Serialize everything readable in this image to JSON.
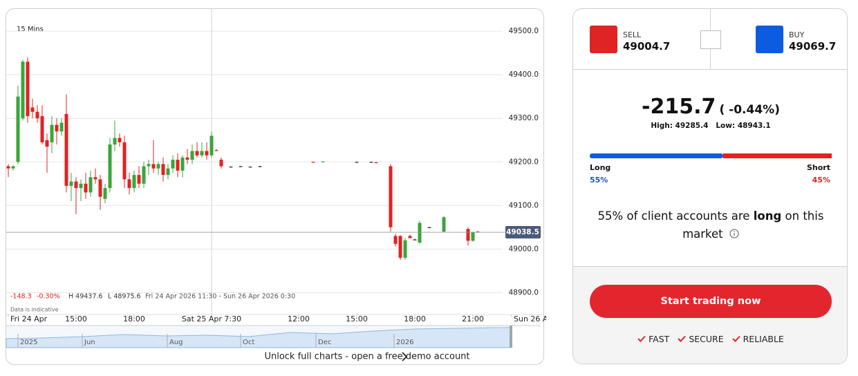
{
  "chart_data": {
    "type": "candlestick",
    "interval": "15 Mins",
    "x": [
      0,
      1,
      2,
      3,
      4,
      5,
      6,
      7,
      8,
      9,
      10,
      11,
      12,
      13,
      14,
      15,
      16,
      17,
      18,
      19,
      20,
      21,
      22,
      23,
      24,
      25,
      26,
      27,
      28,
      29,
      30,
      31,
      32,
      33,
      34,
      35,
      36,
      37,
      38,
      39,
      40,
      41,
      42,
      43,
      44,
      46,
      48,
      50,
      52,
      63,
      65,
      72,
      75,
      76,
      79,
      80,
      81,
      82,
      83,
      84,
      85,
      87,
      90,
      95,
      96,
      97
    ],
    "open": [
      49190,
      49185,
      49200,
      49300,
      49430,
      49325,
      49315,
      49305,
      49250,
      49245,
      49285,
      49270,
      49310,
      49145,
      49155,
      49140,
      49150,
      49130,
      49165,
      49160,
      49115,
      49140,
      49240,
      49255,
      49245,
      49160,
      49140,
      49170,
      49150,
      49190,
      49195,
      49185,
      49195,
      49170,
      49185,
      49205,
      49180,
      49210,
      49205,
      49225,
      49215,
      49225,
      49215,
      49227,
      49205,
      49189,
      49190,
      49189,
      49190,
      49200,
      49200,
      49200,
      49200,
      49199,
      49190,
      49030,
      49030,
      48980,
      49030,
      49022,
      49015,
      49050,
      49040,
      49046,
      49019,
      49040
    ],
    "high": [
      49195,
      49192,
      49375,
      49435,
      49440,
      49345,
      49330,
      49330,
      49265,
      49305,
      49300,
      49300,
      49355,
      49175,
      49165,
      49160,
      49175,
      49180,
      49185,
      49170,
      49150,
      49255,
      49295,
      49265,
      49260,
      49175,
      49180,
      49190,
      49200,
      49205,
      49250,
      49200,
      49210,
      49195,
      49215,
      49220,
      49215,
      49230,
      49240,
      49245,
      49245,
      49245,
      49270,
      49230,
      49210,
      49190,
      49191,
      49190,
      49191,
      49201,
      49201,
      49201,
      49201,
      49200,
      49195,
      49035,
      49032,
      49025,
      49033,
      49024,
      49065,
      49051,
      49075,
      49050,
      49040,
      49041
    ],
    "low": [
      49165,
      49180,
      49195,
      49295,
      49290,
      49300,
      49290,
      49240,
      49175,
      49220,
      49240,
      49260,
      49130,
      49110,
      49080,
      49110,
      49115,
      49120,
      49150,
      49090,
      49105,
      49130,
      49225,
      49235,
      49140,
      49125,
      49130,
      49140,
      49140,
      49170,
      49175,
      49170,
      49155,
      49160,
      49175,
      49165,
      49165,
      49195,
      49195,
      49210,
      49210,
      49205,
      49210,
      49225,
      49185,
      49188,
      49189,
      49188,
      49189,
      49199,
      49199,
      49199,
      49199,
      49197,
      49040,
      49005,
      48975,
      48975,
      49025,
      49020,
      49012,
      49049,
      49038,
      49008,
      49017,
      49039
    ],
    "close": [
      49185,
      49190,
      49350,
      49430,
      49305,
      49315,
      49300,
      49245,
      49235,
      49285,
      49270,
      49290,
      49145,
      49155,
      49140,
      49150,
      49130,
      49165,
      49160,
      49120,
      49140,
      49240,
      49255,
      49245,
      49160,
      49140,
      49170,
      49150,
      49190,
      49195,
      49185,
      49195,
      49170,
      49185,
      49205,
      49180,
      49210,
      49205,
      49225,
      49215,
      49225,
      49215,
      49260,
      49226,
      49190,
      49189,
      49190,
      49189,
      49190,
      49199,
      49201,
      49200,
      49200,
      49198,
      49050,
      49012,
      48980,
      49020,
      49025,
      49022,
      49060,
      49050,
      49073,
      49019,
      49038,
      49040
    ],
    "up_color": "#3aa53a",
    "down_color": "#e02323",
    "flat_color": "#333333",
    "last": 49038.5,
    "xlim": [
      -0.5,
      110
    ],
    "xticks": [
      {
        "value": 0,
        "label": "Fri 24 Apr"
      },
      {
        "value": 14,
        "label": "15:00"
      },
      {
        "value": 26,
        "label": "18:00"
      },
      {
        "value": 42,
        "label": "Sat 25 Apr 7:30"
      },
      {
        "value": 60,
        "label": "12:00"
      },
      {
        "value": 72,
        "label": "15:00"
      },
      {
        "value": 84,
        "label": "18:00"
      },
      {
        "value": 96,
        "label": "21:00"
      },
      {
        "value": 104,
        "label": "Sun 26 A"
      }
    ],
    "ylim": [
      48826,
      49551
    ],
    "yticks": [
      {
        "value": 48900,
        "label": "48900.0"
      },
      {
        "value": 49000,
        "label": "49000.0"
      },
      {
        "value": 49100,
        "label": "49100.0"
      },
      {
        "value": 49200,
        "label": "49200.0"
      },
      {
        "value": 49300,
        "label": "49300.0"
      },
      {
        "value": 49400,
        "label": "49400.0"
      },
      {
        "value": 49500,
        "label": "49500.0"
      }
    ],
    "grid": true,
    "stats": [
      "-148.3",
      "-0.30%",
      "H 49437.6",
      "L 48975.6",
      "Fri 24 Apr 2026 11:30 - Sun 26 Apr 2026 0:30"
    ],
    "note": "Data is indicative"
  },
  "navigator": {
    "labels": [
      "2025",
      "Jun",
      "Aug",
      "Oct",
      "Dec",
      "2026"
    ],
    "link": "Unlock full charts - open a free demo account"
  },
  "panel": {
    "sell": {
      "label": "SELL",
      "price": "49004.7"
    },
    "buy": {
      "label": "BUY",
      "price": "49069.7"
    },
    "change": "-215.7",
    "change_pct": "( -0.44%)",
    "high": "High: 49285.4",
    "low": "Low: 48943.1",
    "sentiment": {
      "long_label": "Long",
      "short_label": "Short",
      "values": [
        55,
        45
      ],
      "value_labels": [
        "55%",
        "45%"
      ],
      "colors": [
        "#0c5ce0",
        "#e02323"
      ]
    },
    "sentence": [
      "55% of client accounts are",
      "long",
      "on this",
      "market"
    ],
    "button": "Start trading now",
    "features": [
      "FAST",
      "SECURE",
      "RELIABLE"
    ]
  }
}
